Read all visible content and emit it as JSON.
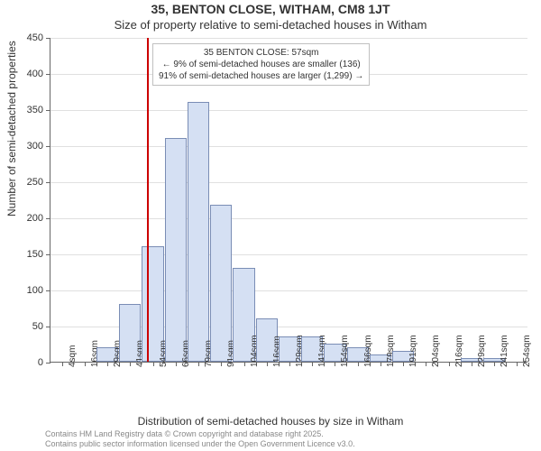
{
  "title": "35, BENTON CLOSE, WITHAM, CM8 1JT",
  "subtitle": "Size of property relative to semi-detached houses in Witham",
  "ylabel": "Number of semi-detached properties",
  "xlabel": "Distribution of semi-detached houses by size in Witham",
  "footer1": "Contains HM Land Registry data © Crown copyright and database right 2025.",
  "footer2": "Contains public sector information licensed under the Open Government Licence v3.0.",
  "chart": {
    "type": "histogram",
    "background_color": "#ffffff",
    "grid_color": "#e0e0e0",
    "axis_color": "#666666",
    "bar_fill": "#d5e0f3",
    "bar_stroke": "#7a8db5",
    "marker_color": "#cc0000",
    "annotation_border": "#c0c0c0",
    "ylim": [
      0,
      450
    ],
    "ytick_step": 50,
    "x_bin_start": 4,
    "x_bin_width": 12.5,
    "x_bin_count": 21,
    "values": [
      0,
      0,
      20,
      80,
      160,
      310,
      360,
      218,
      130,
      60,
      35,
      35,
      25,
      20,
      10,
      15,
      0,
      0,
      5,
      5,
      0
    ],
    "marker_value": 57,
    "annotation": {
      "line1": "35 BENTON CLOSE: 57sqm",
      "line2_left": "← 9% of semi-detached houses are smaller (136)",
      "line3_right": "91% of semi-detached houses are larger (1,299) →"
    },
    "xtick_labels": [
      "4sqm",
      "16sqm",
      "29sqm",
      "41sqm",
      "54sqm",
      "66sqm",
      "79sqm",
      "91sqm",
      "104sqm",
      "116sqm",
      "129sqm",
      "141sqm",
      "154sqm",
      "166sqm",
      "179sqm",
      "191sqm",
      "204sqm",
      "216sqm",
      "229sqm",
      "241sqm",
      "254sqm"
    ],
    "title_fontsize": 14,
    "subtitle_fontsize": 13,
    "label_fontsize": 12,
    "tick_fontsize": 11,
    "xtick_fontsize": 10,
    "annotation_fontsize": 10,
    "footer_fontsize": 9
  }
}
